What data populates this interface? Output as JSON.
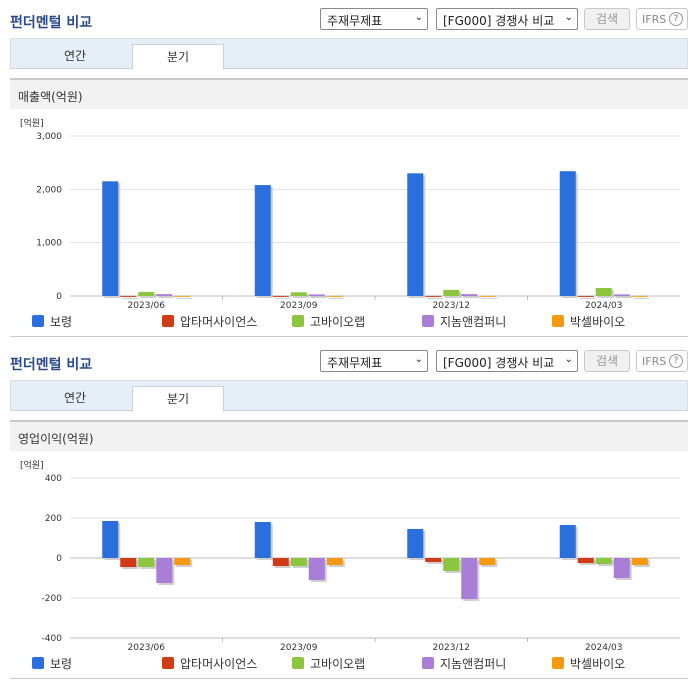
{
  "colors": {
    "보령": "#2a6fdb",
    "압타머사이언스": "#d03a14",
    "고바이오랩": "#8cc63f",
    "지놈앤컴퍼니": "#a87ed6",
    "박셀바이오": "#f59a10"
  },
  "sections": [
    {
      "title": "펀더멘털 비교",
      "select1": "주재무제표",
      "select2": "[FG000] 경쟁사 비교",
      "search_label": "검색",
      "ifrs_label": "IFRS",
      "ifrs_help": "?",
      "tabs": [
        "연간",
        "분기"
      ],
      "active_tab": "분기",
      "metric_label": "매출액(억원)"
    },
    {
      "title": "펀더멘털 비교",
      "select1": "주재무제표",
      "select2": "[FG000] 경쟁사 비교",
      "search_label": "검색",
      "ifrs_label": "IFRS",
      "ifrs_help": "?",
      "tabs": [
        "연간",
        "분기"
      ],
      "active_tab": "분기",
      "metric_label": "영업이익(억원)"
    }
  ],
  "chart_data": [
    {
      "type": "bar",
      "title": "매출액(억원)",
      "unit_label": "[억원]",
      "categories": [
        "2023/06",
        "2023/09",
        "2023/12",
        "2024/03"
      ],
      "ylim": [
        0,
        3000
      ],
      "yticks": [
        0,
        1000,
        2000,
        3000
      ],
      "ytick_labels": [
        "0",
        "1,000",
        "2,000",
        "3,000"
      ],
      "grid": true,
      "legend_position": "bottom",
      "series": [
        {
          "name": "보령",
          "values": [
            2150,
            2080,
            2300,
            2340
          ]
        },
        {
          "name": "압타머사이언스",
          "values": [
            2,
            2,
            2,
            2
          ]
        },
        {
          "name": "고바이오랩",
          "values": [
            75,
            70,
            115,
            150
          ]
        },
        {
          "name": "지놈앤컴퍼니",
          "values": [
            35,
            30,
            35,
            30
          ]
        },
        {
          "name": "박셀바이오",
          "values": [
            3,
            3,
            3,
            3
          ]
        }
      ]
    },
    {
      "type": "bar",
      "title": "영업이익(억원)",
      "unit_label": "[억원]",
      "categories": [
        "2023/06",
        "2023/09",
        "2023/12",
        "2024/03"
      ],
      "ylim": [
        -400,
        400
      ],
      "yticks": [
        -400,
        -200,
        0,
        200,
        400
      ],
      "ytick_labels": [
        "-400",
        "-200",
        "0",
        "200",
        "400"
      ],
      "grid": true,
      "legend_position": "bottom",
      "series": [
        {
          "name": "보령",
          "values": [
            185,
            180,
            145,
            165
          ]
        },
        {
          "name": "압타머사이언스",
          "values": [
            -45,
            -40,
            -20,
            -25
          ]
        },
        {
          "name": "고바이오랩",
          "values": [
            -45,
            -40,
            -65,
            -30
          ]
        },
        {
          "name": "지놈앤컴퍼니",
          "values": [
            -125,
            -110,
            -205,
            -100
          ]
        },
        {
          "name": "박셀바이오",
          "values": [
            -35,
            -35,
            -35,
            -35
          ]
        }
      ]
    }
  ]
}
